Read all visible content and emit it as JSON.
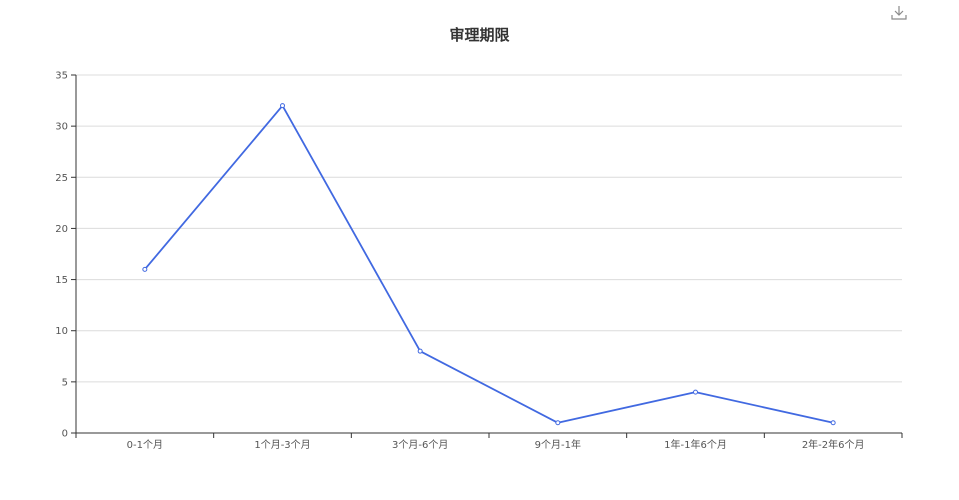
{
  "toolbar": {
    "download_icon": "download-icon"
  },
  "chart_data": {
    "type": "line",
    "title": "审理期限",
    "categories": [
      "0-1个月",
      "1个月-3个月",
      "3个月-6个月",
      "9个月-1年",
      "1年-1年6个月",
      "2年-2年6个月"
    ],
    "values": [
      16,
      32,
      8,
      1,
      4,
      1
    ],
    "ylim": [
      0,
      35
    ],
    "yticks": [
      0,
      5,
      10,
      15,
      20,
      25,
      30,
      35
    ],
    "grid": true,
    "xlabel": "",
    "ylabel": "",
    "colors": {
      "line": "#4169e1",
      "grid": "#dcdcdc",
      "axis": "#333333"
    }
  }
}
